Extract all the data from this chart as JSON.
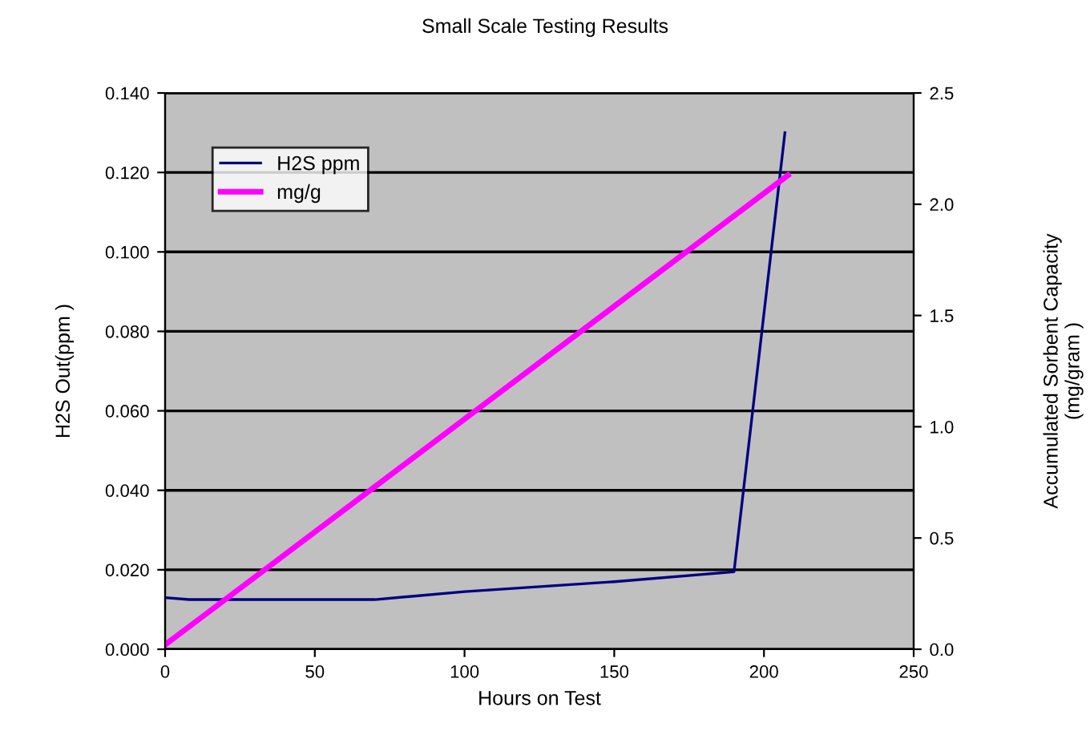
{
  "chart_data": {
    "type": "line",
    "title": "Small Scale Testing Results",
    "xlabel": "Hours on Test",
    "ylabel": "H2S Out(ppm )",
    "y2label": "Accumulated Sorbent Capacity\n(mg/gram )",
    "xlim": [
      0,
      250
    ],
    "xticks": [
      0,
      50,
      100,
      150,
      200,
      250
    ],
    "ylim": [
      0,
      0.14
    ],
    "yticks": [
      {
        "value": 0,
        "label": "0.000"
      },
      {
        "value": 0.02,
        "label": "0.020"
      },
      {
        "value": 0.04,
        "label": "0.040"
      },
      {
        "value": 0.06,
        "label": "0.060"
      },
      {
        "value": 0.08,
        "label": "0.080"
      },
      {
        "value": 0.1,
        "label": "0.100"
      },
      {
        "value": 0.12,
        "label": "0.120"
      },
      {
        "value": 0.14,
        "label": "0.140"
      }
    ],
    "y2lim": [
      0,
      2.5
    ],
    "y2ticks": [
      {
        "value": 0,
        "label": "0.0"
      },
      {
        "value": 0.5,
        "label": "0.5"
      },
      {
        "value": 1,
        "label": "1.0"
      },
      {
        "value": 1.5,
        "label": "1.5"
      },
      {
        "value": 2,
        "label": "2.0"
      },
      {
        "value": 2.5,
        "label": "2.5"
      }
    ],
    "grid": "y",
    "legend": "top left",
    "marker": "none",
    "line_style": "solid",
    "series": [
      {
        "name": "H2S ppm",
        "color": "#000080",
        "x": [
          0,
          8,
          70,
          100,
          150,
          190,
          207
        ],
        "values": [
          0.013,
          0.0125,
          0.0125,
          0.0145,
          0.017,
          0.0195,
          0.13
        ]
      },
      {
        "name": "mg/g",
        "color": "#ff00ff",
        "axis": "y2",
        "x": [
          0,
          208
        ],
        "values": [
          0.02,
          2.13
        ]
      }
    ]
  }
}
